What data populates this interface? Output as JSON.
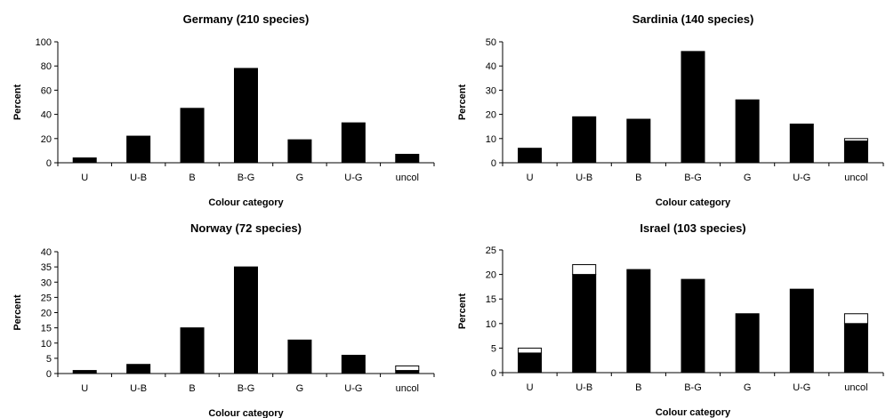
{
  "colors": {
    "bar": "#000000",
    "bar_extra": "#ffffff",
    "axis": "#000000"
  },
  "chart_data": [
    {
      "type": "bar",
      "stacked": true,
      "title": "Germany (210 species)",
      "xlabel": "Colour category",
      "ylabel": "Percent",
      "categories": [
        "U",
        "U-B",
        "B",
        "B-G",
        "G",
        "U-G",
        "uncol"
      ],
      "ylim": [
        0,
        100
      ],
      "yticks": [
        0,
        20,
        40,
        60,
        80,
        100
      ],
      "series": [
        {
          "values": [
            4,
            22,
            45,
            78,
            19,
            33,
            7
          ]
        },
        {
          "values": [
            0,
            0,
            0,
            0,
            0,
            0,
            0
          ]
        }
      ]
    },
    {
      "type": "bar",
      "stacked": true,
      "title": "Sardinia (140 species)",
      "xlabel": "Colour category",
      "ylabel": "Percent",
      "categories": [
        "U",
        "U-B",
        "B",
        "B-G",
        "G",
        "U-G",
        "uncol"
      ],
      "ylim": [
        0,
        50
      ],
      "yticks": [
        0,
        10,
        20,
        30,
        40,
        50
      ],
      "series": [
        {
          "values": [
            6,
            19,
            18,
            46,
            26,
            16,
            9
          ]
        },
        {
          "values": [
            0,
            0,
            0,
            0,
            0,
            0,
            1
          ]
        }
      ]
    },
    {
      "type": "bar",
      "stacked": true,
      "title": "Norway (72 species)",
      "xlabel": "Colour category",
      "ylabel": "Percent",
      "categories": [
        "U",
        "U-B",
        "B",
        "B-G",
        "G",
        "U-G",
        "uncol"
      ],
      "ylim": [
        0,
        40
      ],
      "yticks": [
        0,
        5,
        10,
        15,
        20,
        25,
        30,
        35,
        40
      ],
      "series": [
        {
          "values": [
            1,
            3,
            15,
            35,
            11,
            6,
            1
          ]
        },
        {
          "values": [
            0,
            0,
            0,
            0,
            0,
            0,
            1.5
          ]
        }
      ]
    },
    {
      "type": "bar",
      "stacked": true,
      "title": "Israel (103 species)",
      "xlabel": "Colour category",
      "ylabel": "Percent",
      "categories": [
        "U",
        "U-B",
        "B",
        "B-G",
        "G",
        "U-G",
        "uncol"
      ],
      "ylim": [
        0,
        25
      ],
      "yticks": [
        0,
        5,
        10,
        15,
        20,
        25
      ],
      "series": [
        {
          "values": [
            4,
            20,
            21,
            19,
            12,
            17,
            10
          ]
        },
        {
          "values": [
            1,
            2,
            0,
            0,
            0,
            0,
            2
          ]
        }
      ]
    }
  ]
}
